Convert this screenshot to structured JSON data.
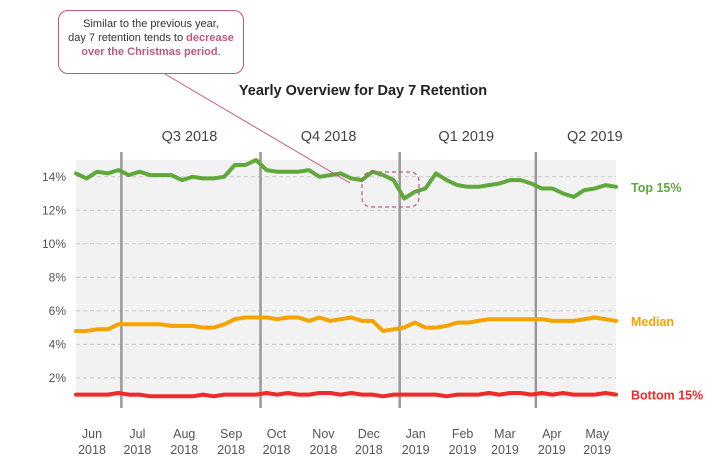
{
  "annotation": {
    "line1": "Similar to the previous year,",
    "line2_prefix": "day 7 retention tends to ",
    "line2_highlight": "decrease",
    "line3_highlight": "over the Christmas period",
    "line3_suffix": ".",
    "color": "#c0587f"
  },
  "chart_data": {
    "type": "line",
    "title": "Yearly Overview for Day 7 Retention",
    "quarters": [
      "Q3 2018",
      "Q4 2018",
      "Q1 2019",
      "Q2 2019"
    ],
    "months": [
      {
        "m": "Jun",
        "y": "2018"
      },
      {
        "m": "Jul",
        "y": "2018"
      },
      {
        "m": "Aug",
        "y": "2018"
      },
      {
        "m": "Sep",
        "y": "2018"
      },
      {
        "m": "Oct",
        "y": "2018"
      },
      {
        "m": "Nov",
        "y": "2018"
      },
      {
        "m": "Dec",
        "y": "2018"
      },
      {
        "m": "Jan",
        "y": "2019"
      },
      {
        "m": "Feb",
        "y": "2019"
      },
      {
        "m": "Mar",
        "y": "2019"
      },
      {
        "m": "Apr",
        "y": "2019"
      },
      {
        "m": "May",
        "y": "2019"
      }
    ],
    "y_ticks": [
      "2%",
      "4%",
      "6%",
      "8%",
      "10%",
      "12%",
      "14%"
    ],
    "ylim": [
      0.8,
      15
    ],
    "grid": "dashed",
    "x": [
      "2018-06-01",
      "2018-06-08",
      "2018-06-15",
      "2018-06-22",
      "2018-06-29",
      "2018-07-06",
      "2018-07-13",
      "2018-07-20",
      "2018-07-27",
      "2018-08-03",
      "2018-08-10",
      "2018-08-17",
      "2018-08-24",
      "2018-08-31",
      "2018-09-07",
      "2018-09-14",
      "2018-09-21",
      "2018-09-28",
      "2018-10-05",
      "2018-10-12",
      "2018-10-19",
      "2018-10-26",
      "2018-11-02",
      "2018-11-09",
      "2018-11-16",
      "2018-11-23",
      "2018-11-30",
      "2018-12-07",
      "2018-12-14",
      "2018-12-21",
      "2018-12-28",
      "2019-01-04",
      "2019-01-11",
      "2019-01-18",
      "2019-01-25",
      "2019-02-01",
      "2019-02-08",
      "2019-02-15",
      "2019-02-22",
      "2019-03-01",
      "2019-03-08",
      "2019-03-15",
      "2019-03-22",
      "2019-03-29",
      "2019-04-05",
      "2019-04-12",
      "2019-04-19",
      "2019-04-26",
      "2019-05-03",
      "2019-05-10",
      "2019-05-17",
      "2019-05-24"
    ],
    "series": [
      {
        "name": "Top 15%",
        "color": "#5fa83a",
        "values": [
          14.2,
          13.9,
          14.3,
          14.2,
          14.4,
          14.1,
          14.3,
          14.1,
          14.1,
          14.1,
          13.8,
          14.0,
          13.9,
          13.9,
          14.0,
          14.7,
          14.7,
          15.0,
          14.4,
          14.3,
          14.3,
          14.3,
          14.4,
          14.0,
          14.1,
          14.2,
          13.9,
          13.8,
          14.3,
          14.1,
          13.8,
          12.7,
          13.1,
          13.3,
          14.2,
          13.8,
          13.5,
          13.4,
          13.4,
          13.5,
          13.6,
          13.8,
          13.8,
          13.6,
          13.3,
          13.3,
          13.0,
          12.8,
          13.2,
          13.3,
          13.5,
          13.4
        ]
      },
      {
        "name": "Median",
        "color": "#f4a300",
        "values": [
          4.8,
          4.8,
          4.9,
          4.9,
          5.2,
          5.2,
          5.2,
          5.2,
          5.2,
          5.1,
          5.1,
          5.1,
          5.0,
          5.0,
          5.2,
          5.5,
          5.6,
          5.6,
          5.6,
          5.5,
          5.6,
          5.6,
          5.4,
          5.6,
          5.4,
          5.5,
          5.6,
          5.4,
          5.4,
          4.8,
          4.9,
          5.0,
          5.3,
          5.0,
          5.0,
          5.1,
          5.3,
          5.3,
          5.4,
          5.5,
          5.5,
          5.5,
          5.5,
          5.5,
          5.5,
          5.4,
          5.4,
          5.4,
          5.5,
          5.6,
          5.5,
          5.4
        ]
      },
      {
        "name": "Bottom 15%",
        "color": "#ee2a2a",
        "values": [
          1.0,
          1.0,
          1.0,
          1.0,
          1.1,
          1.0,
          1.0,
          0.9,
          0.9,
          0.9,
          0.9,
          0.9,
          1.0,
          0.9,
          1.0,
          1.0,
          1.0,
          1.0,
          1.1,
          1.0,
          1.1,
          1.0,
          1.0,
          1.1,
          1.1,
          1.0,
          1.1,
          1.0,
          1.0,
          0.9,
          1.0,
          1.0,
          1.0,
          1.0,
          1.0,
          0.9,
          1.0,
          1.0,
          1.0,
          1.1,
          1.0,
          1.1,
          1.1,
          1.0,
          1.1,
          1.0,
          1.1,
          1.0,
          1.0,
          1.0,
          1.1,
          1.0
        ]
      }
    ]
  }
}
